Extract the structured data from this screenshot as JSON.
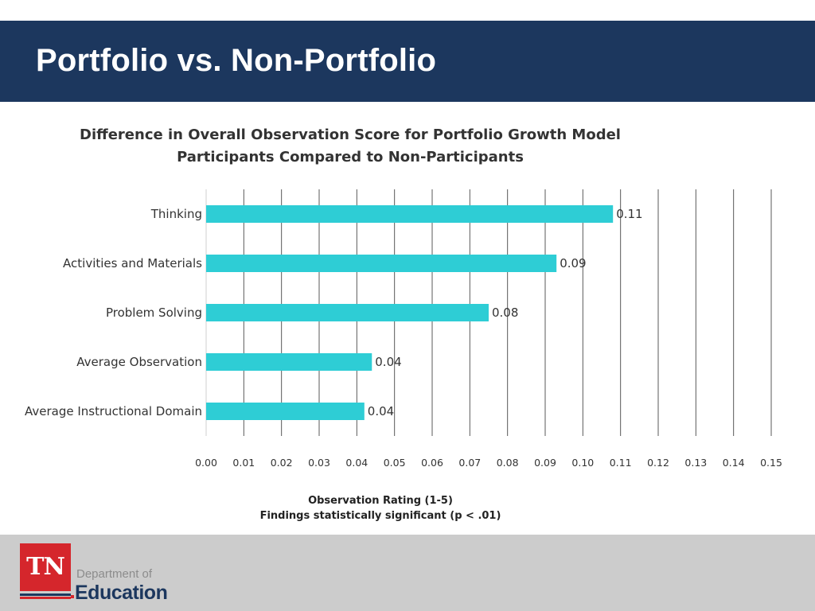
{
  "slide": {
    "title": "Portfolio vs. Non-Portfolio"
  },
  "chart_data": {
    "type": "bar",
    "orientation": "horizontal",
    "title_lines": [
      "Difference in Overall Observation Score for Portfolio Growth Model",
      "Participants Compared to Non-Participants"
    ],
    "categories": [
      "Thinking",
      "Activities and Materials",
      "Problem Solving",
      "Average Observation",
      "Average Instructional Domain"
    ],
    "values": [
      0.108,
      0.093,
      0.075,
      0.044,
      0.042
    ],
    "data_labels": [
      "0.11",
      "0.09",
      "0.08",
      "0.04",
      "0.04"
    ],
    "xlim": [
      0,
      0.15
    ],
    "xticks": [
      "0.00",
      "0.01",
      "0.02",
      "0.03",
      "0.04",
      "0.05",
      "0.06",
      "0.07",
      "0.08",
      "0.09",
      "0.10",
      "0.11",
      "0.12",
      "0.13",
      "0.14",
      "0.15"
    ],
    "xlabel_lines": [
      "Observation Rating (1-5)",
      "Findings statistically significant (p < .01)"
    ],
    "grid": "vertical",
    "bar_color": "#2ecdd5",
    "grid_color": "#595959",
    "legend": "none"
  },
  "footer": {
    "logo_mark": "TN",
    "logo_line1": "Department of",
    "logo_line2": "Education",
    "brand_red": "#d5262c",
    "brand_navy": "#1c375e"
  }
}
